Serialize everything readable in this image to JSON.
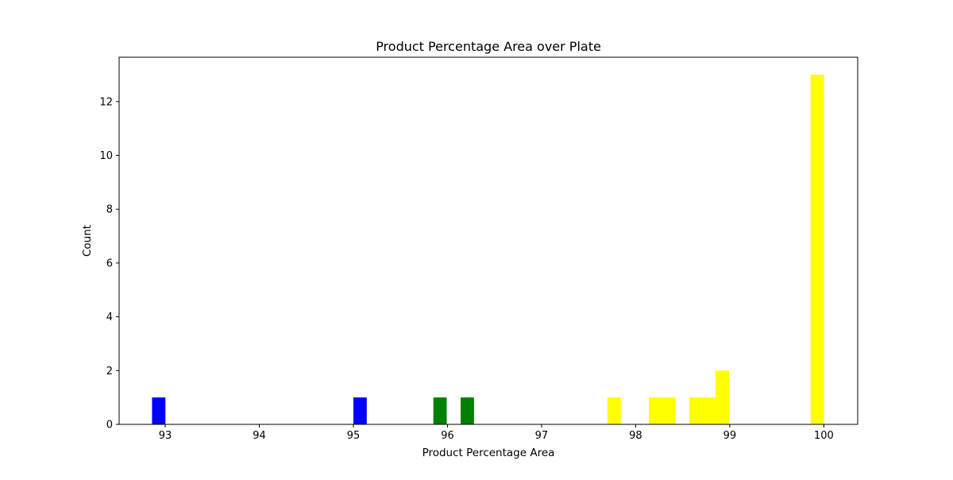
{
  "chart_data": {
    "type": "bar",
    "title": "Product Percentage Area over Plate",
    "xlabel": "Product Percentage Area",
    "ylabel": "Count",
    "xlim": [
      92.51,
      100.36
    ],
    "ylim": [
      0,
      13.65
    ],
    "xticks": [
      "93",
      "94",
      "95",
      "96",
      "97",
      "98",
      "99",
      "100"
    ],
    "yticks": [
      "0",
      "2",
      "4",
      "6",
      "8",
      "10",
      "12"
    ],
    "grid": false,
    "bin_width": 0.142,
    "bars": [
      {
        "x0": 92.86,
        "value": 1,
        "color": "#0000ff"
      },
      {
        "x0": 95.0,
        "value": 1,
        "color": "#0000ff"
      },
      {
        "x0": 95.85,
        "value": 1,
        "color": "#008000"
      },
      {
        "x0": 96.14,
        "value": 1,
        "color": "#008000"
      },
      {
        "x0": 97.7,
        "value": 1,
        "color": "#ffff00"
      },
      {
        "x0": 98.14,
        "value": 1,
        "color": "#ffff00"
      },
      {
        "x0": 98.28,
        "value": 1,
        "color": "#ffff00"
      },
      {
        "x0": 98.57,
        "value": 1,
        "color": "#ffff00"
      },
      {
        "x0": 98.71,
        "value": 1,
        "color": "#ffff00"
      },
      {
        "x0": 98.85,
        "value": 2,
        "color": "#ffff00"
      },
      {
        "x0": 99.86,
        "value": 13,
        "color": "#ffff00"
      }
    ]
  }
}
